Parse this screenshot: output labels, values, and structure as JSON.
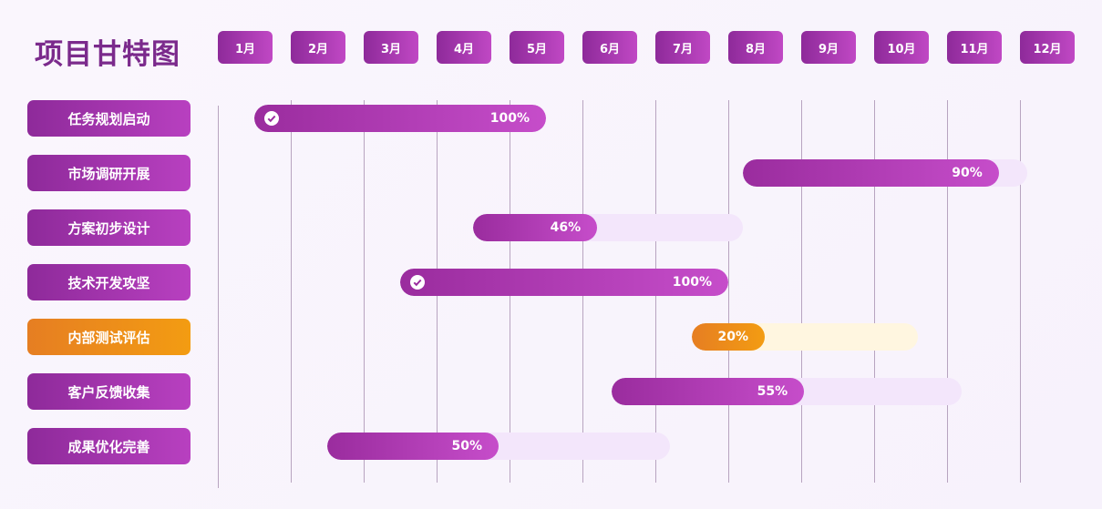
{
  "title": "项目甘特图",
  "months": [
    "1月",
    "2月",
    "3月",
    "4月",
    "5月",
    "6月",
    "7月",
    "8月",
    "9月",
    "10月",
    "11月",
    "12月"
  ],
  "colors": {
    "primary": "#9a2c9e",
    "primary_light": "#f3e6fb",
    "highlight": "#e67e22",
    "highlight_light": "#fff6e0",
    "title": "#7b2a8c"
  },
  "tasks": [
    {
      "name": "任务规划启动",
      "start": 1.5,
      "end": 5.5,
      "progress": 100,
      "progress_label": "100%",
      "done": true,
      "highlight": false
    },
    {
      "name": "市场调研开展",
      "start": 8.2,
      "end": 12.1,
      "progress": 90,
      "progress_label": "90%",
      "done": false,
      "highlight": false
    },
    {
      "name": "方案初步设计",
      "start": 4.5,
      "end": 8.2,
      "progress": 46,
      "progress_label": "46%",
      "done": false,
      "highlight": false
    },
    {
      "name": "技术开发攻坚",
      "start": 3.5,
      "end": 8.0,
      "progress": 100,
      "progress_label": "100%",
      "done": true,
      "highlight": false
    },
    {
      "name": "内部测试评估",
      "start": 7.5,
      "end": 10.6,
      "progress": 20,
      "progress_label": "20%",
      "done": false,
      "highlight": true
    },
    {
      "name": "客户反馈收集",
      "start": 6.4,
      "end": 11.2,
      "progress": 55,
      "progress_label": "55%",
      "done": false,
      "highlight": false
    },
    {
      "name": "成果优化完善",
      "start": 2.5,
      "end": 7.2,
      "progress": 50,
      "progress_label": "50%",
      "done": false,
      "highlight": false
    }
  ]
}
